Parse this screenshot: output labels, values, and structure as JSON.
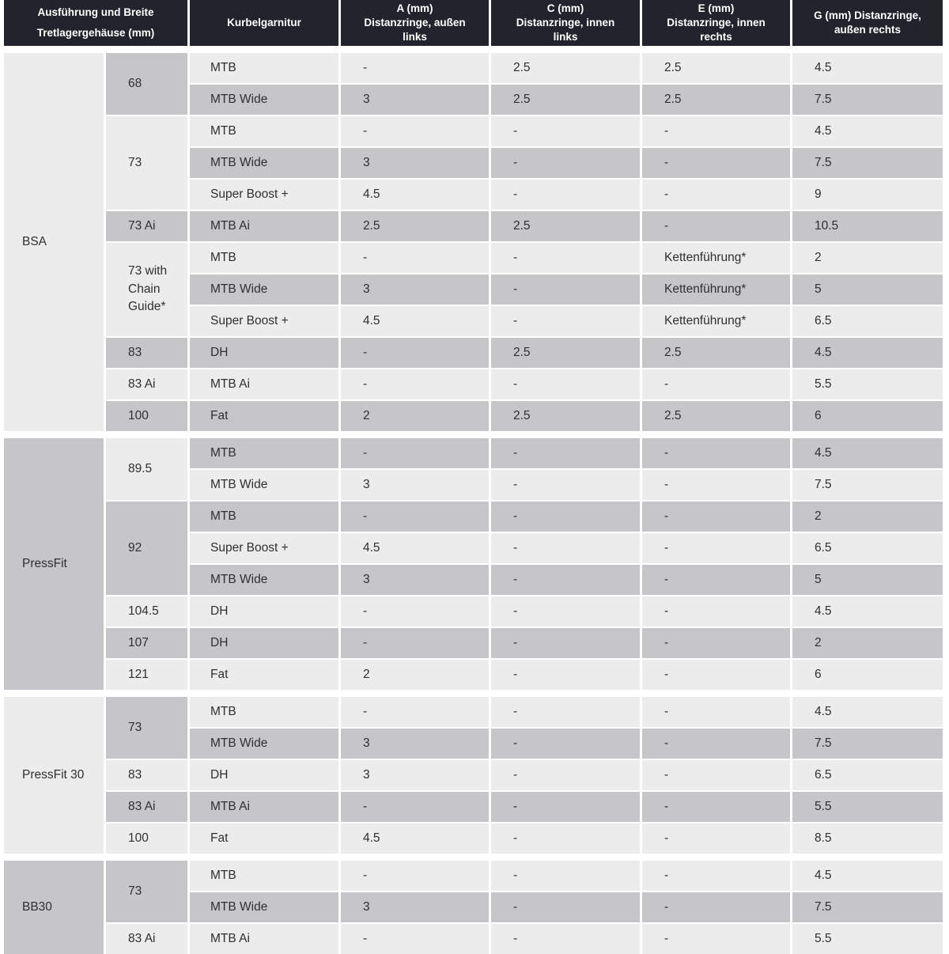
{
  "table": {
    "columns": [
      {
        "label": "Ausführung und Breite\nTretlagergehäuse (mm)"
      },
      {
        "label": "Kurbelgarnitur"
      },
      {
        "label": "A (mm)\nDistanzringe, außen\nlinks"
      },
      {
        "label": "C (mm)\nDistanzringe, innen\nlinks"
      },
      {
        "label": "E (mm)\nDistanzringe, innen\nrechts"
      },
      {
        "label": "G (mm) Distanzringe,\naußen rechts"
      }
    ],
    "sections": [
      {
        "name": "BSA",
        "shades": {
          "group": "light",
          "size_first": "gray",
          "row_first": "light"
        },
        "groups": [
          {
            "size": "68",
            "rows": [
              [
                "MTB",
                "-",
                "2.5",
                "2.5",
                "4.5"
              ],
              [
                "MTB Wide",
                "3",
                "2.5",
                "2.5",
                "7.5"
              ]
            ]
          },
          {
            "size": "73",
            "rows": [
              [
                "MTB",
                "-",
                "-",
                "-",
                "4.5"
              ],
              [
                "MTB Wide",
                "3",
                "-",
                "-",
                "7.5"
              ],
              [
                "Super Boost +",
                "4.5",
                "-",
                "-",
                "9"
              ]
            ]
          },
          {
            "size": "73 Ai",
            "rows": [
              [
                "MTB Ai",
                "2.5",
                "2.5",
                "-",
                "10.5"
              ]
            ]
          },
          {
            "size": "73 with\nChain\nGuide*",
            "rows": [
              [
                "MTB",
                "-",
                "-",
                "Kettenführung*",
                "2"
              ],
              [
                "MTB Wide",
                "3",
                "-",
                "Kettenführung*",
                "5"
              ],
              [
                "Super Boost +",
                "4.5",
                "-",
                "Kettenführung*",
                "6.5"
              ]
            ]
          },
          {
            "size": "83",
            "rows": [
              [
                "DH",
                "-",
                "2.5",
                "2.5",
                "4.5"
              ]
            ]
          },
          {
            "size": "83 Ai",
            "rows": [
              [
                "MTB Ai",
                "-",
                "-",
                "-",
                "5.5"
              ]
            ]
          },
          {
            "size": "100",
            "rows": [
              [
                "Fat",
                "2",
                "2.5",
                "2.5",
                "6"
              ]
            ]
          }
        ]
      },
      {
        "name": "PressFit",
        "shades": {
          "group": "gray",
          "size_first": "light",
          "row_first": "gray"
        },
        "groups": [
          {
            "size": "89.5",
            "rows": [
              [
                "MTB",
                "-",
                "-",
                "-",
                "4.5"
              ],
              [
                "MTB Wide",
                "3",
                "-",
                "-",
                "7.5"
              ]
            ]
          },
          {
            "size": "92",
            "rows": [
              [
                "MTB",
                "-",
                "-",
                "-",
                "2"
              ],
              [
                "Super Boost +",
                "4.5",
                "-",
                "-",
                "6.5"
              ],
              [
                "MTB Wide",
                "3",
                "-",
                "-",
                "5"
              ]
            ]
          },
          {
            "size": "104.5",
            "rows": [
              [
                "DH",
                "-",
                "-",
                "-",
                "4.5"
              ]
            ]
          },
          {
            "size": "107",
            "rows": [
              [
                "DH",
                "-",
                "-",
                "-",
                "2"
              ]
            ]
          },
          {
            "size": "121",
            "rows": [
              [
                "Fat",
                "2",
                "-",
                "-",
                "6"
              ]
            ]
          }
        ]
      },
      {
        "name": "PressFit 30",
        "shades": {
          "group": "light",
          "size_first": "gray",
          "row_first": "light"
        },
        "groups": [
          {
            "size": "73",
            "rows": [
              [
                "MTB",
                "-",
                "-",
                "-",
                "4.5"
              ],
              [
                "MTB Wide",
                "3",
                "-",
                "-",
                "7.5"
              ]
            ]
          },
          {
            "size": "83",
            "rows": [
              [
                "DH",
                "3",
                "-",
                "-",
                "6.5"
              ]
            ]
          },
          {
            "size": "83 Ai",
            "rows": [
              [
                "MTB Ai",
                "-",
                "-",
                "-",
                "5.5"
              ]
            ]
          },
          {
            "size": "100",
            "rows": [
              [
                "Fat",
                "4.5",
                "-",
                "-",
                "8.5"
              ]
            ]
          }
        ]
      },
      {
        "name": "BB30",
        "shades": {
          "group": "gray",
          "size_first": "gray",
          "row_first": "light"
        },
        "groups": [
          {
            "size": "73",
            "rows": [
              [
                "MTB",
                "-",
                "-",
                "-",
                "4.5"
              ],
              [
                "MTB Wide",
                "3",
                "-",
                "-",
                "7.5"
              ]
            ]
          },
          {
            "size": "83 Ai",
            "rows": [
              [
                "MTB Ai",
                "-",
                "-",
                "-",
                "5.5"
              ]
            ]
          }
        ]
      }
    ]
  },
  "colors": {
    "header_bg": "#21242d",
    "header_text": "#ffffff",
    "row_light": "#ececed",
    "row_gray": "#c6c6c9",
    "body_text": "#2f2f31"
  }
}
